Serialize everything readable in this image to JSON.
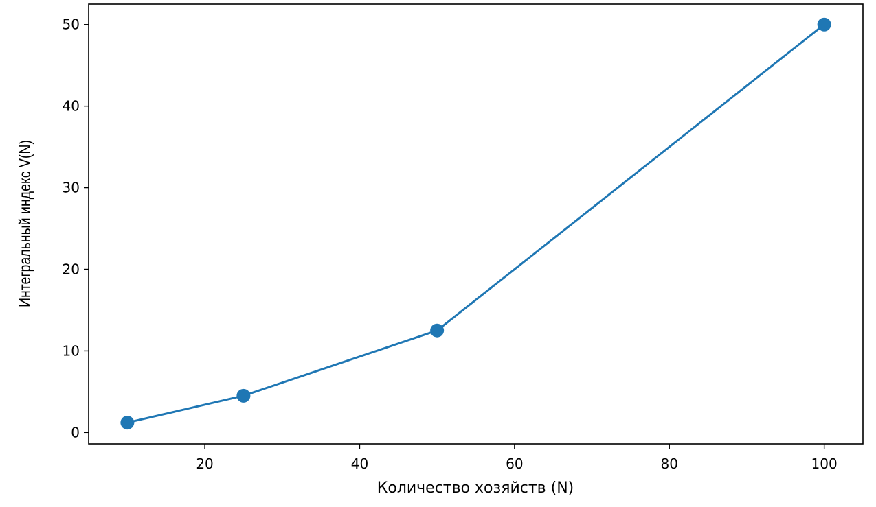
{
  "chart_data": {
    "type": "line",
    "title": "",
    "xlabel": "Количество хозяйств (N)",
    "ylabel": "Интегральный индекс V(N)",
    "xlim": [
      5,
      105
    ],
    "ylim": [
      -1.4,
      52.5
    ],
    "xticks": [
      20,
      40,
      60,
      80,
      100
    ],
    "yticks": [
      0,
      10,
      20,
      30,
      40,
      50
    ],
    "grid": false,
    "legend": "none",
    "series": [
      {
        "x": [
          10,
          25,
          50,
          100
        ],
        "y": [
          1.2,
          4.5,
          12.5,
          50
        ],
        "color": "#1f77b4",
        "marker": "circle"
      }
    ]
  }
}
